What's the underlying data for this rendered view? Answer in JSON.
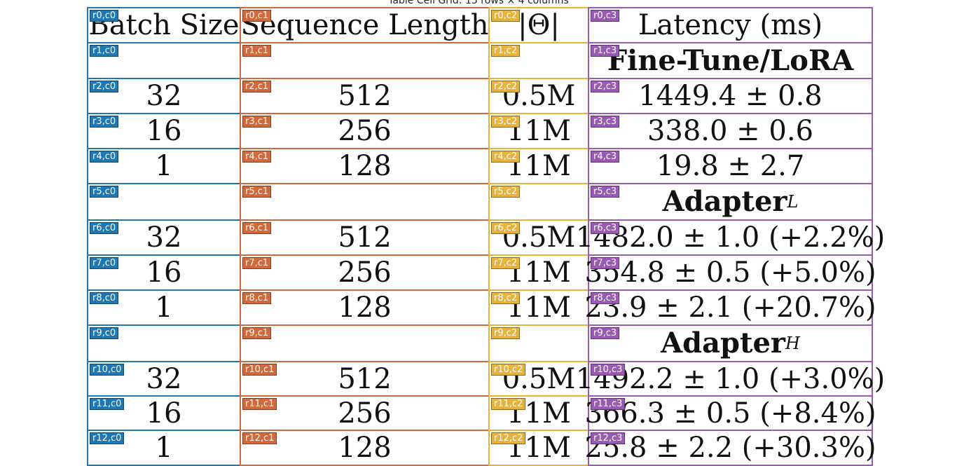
{
  "caption": "Table Cell Grid: 13 rows × 4 columns",
  "colors": {
    "c0": "#1f77b4",
    "c1": "#d2693c",
    "c2": "#e8b33a",
    "c3": "#9b59b6"
  },
  "rows": [
    {
      "cells": [
        {
          "tag": "r0,c0",
          "text": "Batch Size"
        },
        {
          "tag": "r0,c1",
          "text": "Sequence Length"
        },
        {
          "tag": "r0,c2",
          "text": "|Θ|"
        },
        {
          "tag": "r0,c3",
          "text": "Latency (ms)"
        }
      ]
    },
    {
      "cells": [
        {
          "tag": "r1,c0",
          "text": ""
        },
        {
          "tag": "r1,c1",
          "text": ""
        },
        {
          "tag": "r1,c2",
          "text": ""
        },
        {
          "tag": "r1,c3",
          "text": "Fine-Tune/LoRA",
          "bold": true
        }
      ]
    },
    {
      "cells": [
        {
          "tag": "r2,c0",
          "text": "32"
        },
        {
          "tag": "r2,c1",
          "text": "512"
        },
        {
          "tag": "r2,c2",
          "text": "0.5M"
        },
        {
          "tag": "r2,c3",
          "text": "1449.4 ± 0.8"
        }
      ]
    },
    {
      "cells": [
        {
          "tag": "r3,c0",
          "text": "16"
        },
        {
          "tag": "r3,c1",
          "text": "256"
        },
        {
          "tag": "r3,c2",
          "text": "11M"
        },
        {
          "tag": "r3,c3",
          "text": "338.0 ± 0.6"
        }
      ]
    },
    {
      "cells": [
        {
          "tag": "r4,c0",
          "text": "1"
        },
        {
          "tag": "r4,c1",
          "text": "128"
        },
        {
          "tag": "r4,c2",
          "text": "11M"
        },
        {
          "tag": "r4,c3",
          "text": "19.8 ± 2.7"
        }
      ]
    },
    {
      "cells": [
        {
          "tag": "r5,c0",
          "text": ""
        },
        {
          "tag": "r5,c1",
          "text": ""
        },
        {
          "tag": "r5,c2",
          "text": ""
        },
        {
          "tag": "r5,c3",
          "text": "Adapter",
          "sup": "L",
          "bold": true
        }
      ]
    },
    {
      "cells": [
        {
          "tag": "r6,c0",
          "text": "32"
        },
        {
          "tag": "r6,c1",
          "text": "512"
        },
        {
          "tag": "r6,c2",
          "text": "0.5M"
        },
        {
          "tag": "r6,c3",
          "text": "1482.0 ± 1.0 (+2.2%)"
        }
      ]
    },
    {
      "cells": [
        {
          "tag": "r7,c0",
          "text": "16"
        },
        {
          "tag": "r7,c1",
          "text": "256"
        },
        {
          "tag": "r7,c2",
          "text": "11M"
        },
        {
          "tag": "r7,c3",
          "text": "354.8 ± 0.5 (+5.0%)"
        }
      ]
    },
    {
      "cells": [
        {
          "tag": "r8,c0",
          "text": "1"
        },
        {
          "tag": "r8,c1",
          "text": "128"
        },
        {
          "tag": "r8,c2",
          "text": "11M"
        },
        {
          "tag": "r8,c3",
          "text": "23.9 ± 2.1 (+20.7%)"
        }
      ]
    },
    {
      "cells": [
        {
          "tag": "r9,c0",
          "text": ""
        },
        {
          "tag": "r9,c1",
          "text": ""
        },
        {
          "tag": "r9,c2",
          "text": ""
        },
        {
          "tag": "r9,c3",
          "text": "Adapter",
          "sup": "H",
          "bold": true
        }
      ]
    },
    {
      "cells": [
        {
          "tag": "r10,c0",
          "text": "32"
        },
        {
          "tag": "r10,c1",
          "text": "512"
        },
        {
          "tag": "r10,c2",
          "text": "0.5M"
        },
        {
          "tag": "r10,c3",
          "text": "1492.2 ± 1.0 (+3.0%)"
        }
      ]
    },
    {
      "cells": [
        {
          "tag": "r11,c0",
          "text": "16"
        },
        {
          "tag": "r11,c1",
          "text": "256"
        },
        {
          "tag": "r11,c2",
          "text": "11M"
        },
        {
          "tag": "r11,c3",
          "text": "366.3 ± 0.5 (+8.4%)"
        }
      ]
    },
    {
      "cells": [
        {
          "tag": "r12,c0",
          "text": "1"
        },
        {
          "tag": "r12,c1",
          "text": "128"
        },
        {
          "tag": "r12,c2",
          "text": "11M"
        },
        {
          "tag": "r12,c3",
          "text": "25.8 ± 2.2 (+30.3%)"
        }
      ]
    }
  ]
}
